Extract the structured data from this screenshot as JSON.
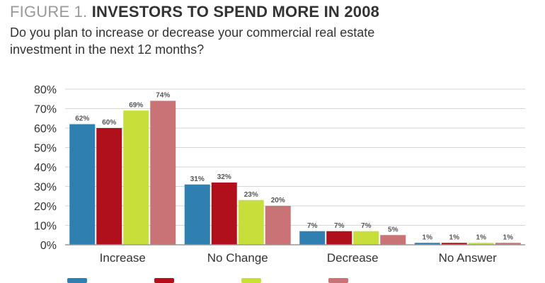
{
  "figure": {
    "title_prefix": "FIGURE 1.",
    "title": "INVESTORS TO SPEND MORE IN 2008",
    "subtitle": "Do you plan to increase or decrease your commercial real estate investment in the next 12 months?"
  },
  "chart_data": {
    "type": "bar",
    "categories": [
      "Increase",
      "No Change",
      "Decrease",
      "No Answer"
    ],
    "series": [
      {
        "color": "#2f7fb0",
        "values": [
          62,
          31,
          7,
          1
        ]
      },
      {
        "color": "#b0101c",
        "values": [
          60,
          32,
          7,
          1
        ]
      },
      {
        "color": "#c8de3a",
        "values": [
          69,
          23,
          7,
          1
        ]
      },
      {
        "color": "#c97377",
        "values": [
          74,
          20,
          5,
          1
        ]
      }
    ],
    "data_labels": [
      [
        "62%",
        "31%",
        "7%",
        "1%"
      ],
      [
        "60%",
        "32%",
        "7%",
        "1%"
      ],
      [
        "69%",
        "23%",
        "7%",
        "1%"
      ],
      [
        "74%",
        "20%",
        "5%",
        "1%"
      ]
    ],
    "y_ticks": [
      "0%",
      "10%",
      "20%",
      "30%",
      "40%",
      "50%",
      "60%",
      "70%",
      "80%"
    ],
    "ylim": [
      0,
      80
    ],
    "grid": true,
    "legend": "bottom"
  }
}
